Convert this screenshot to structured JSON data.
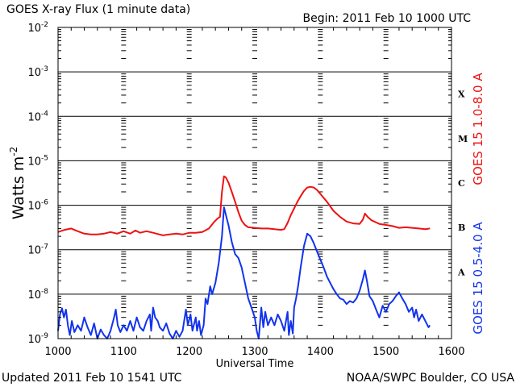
{
  "chart_data": {
    "type": "line",
    "title": "GOES X-ray Flux (1 minute data)",
    "begin_label": "Begin: 2011 Feb 10 1000 UTC",
    "xlabel": "Universal Time",
    "ylabel": "Watts m",
    "ylabel_superscript": "-2",
    "xlim": [
      1000,
      1600
    ],
    "x_ticks": [
      "1000",
      "1100",
      "1200",
      "1300",
      "1400",
      "1500",
      "1600"
    ],
    "y_scale": "log",
    "ylim": [
      1e-09,
      0.01
    ],
    "y_ticks": [
      {
        "base": "10",
        "exp": "-9",
        "value": 1e-09
      },
      {
        "base": "10",
        "exp": "-8",
        "value": 1e-08
      },
      {
        "base": "10",
        "exp": "-7",
        "value": 1e-07
      },
      {
        "base": "10",
        "exp": "-6",
        "value": 1e-06
      },
      {
        "base": "10",
        "exp": "-5",
        "value": 1e-05
      },
      {
        "base": "10",
        "exp": "-4",
        "value": 0.0001
      },
      {
        "base": "10",
        "exp": "-3",
        "value": 0.001
      },
      {
        "base": "10",
        "exp": "-2",
        "value": 0.01
      }
    ],
    "flare_classes": [
      {
        "label": "A",
        "value": 3.16e-08
      },
      {
        "label": "B",
        "value": 3.16e-07
      },
      {
        "label": "C",
        "value": 3.16e-06
      },
      {
        "label": "M",
        "value": 3.16e-05
      },
      {
        "label": "X",
        "value": 0.000316
      }
    ],
    "grid": true,
    "series": [
      {
        "name": "GOES 15 1.0-8.0 A",
        "color": "#ee1111",
        "points": [
          [
            1000,
            2.5e-07
          ],
          [
            1010,
            2.8e-07
          ],
          [
            1020,
            3e-07
          ],
          [
            1030,
            2.6e-07
          ],
          [
            1040,
            2.3e-07
          ],
          [
            1050,
            2.2e-07
          ],
          [
            1060,
            2.2e-07
          ],
          [
            1070,
            2.3e-07
          ],
          [
            1080,
            2.5e-07
          ],
          [
            1090,
            2.3e-07
          ],
          [
            1100,
            2.6e-07
          ],
          [
            1110,
            2.3e-07
          ],
          [
            1118,
            2.7e-07
          ],
          [
            1125,
            2.4e-07
          ],
          [
            1135,
            2.6e-07
          ],
          [
            1145,
            2.4e-07
          ],
          [
            1150,
            2.3e-07
          ],
          [
            1160,
            2.1e-07
          ],
          [
            1170,
            2.2e-07
          ],
          [
            1180,
            2.3e-07
          ],
          [
            1190,
            2.2e-07
          ],
          [
            1200,
            2.4e-07
          ],
          [
            1210,
            2.4e-07
          ],
          [
            1220,
            2.5e-07
          ],
          [
            1230,
            3e-07
          ],
          [
            1238,
            4.2e-07
          ],
          [
            1243,
            5e-07
          ],
          [
            1247,
            5.5e-07
          ],
          [
            1250,
            2e-06
          ],
          [
            1253,
            4.5e-06
          ],
          [
            1256,
            4.2e-06
          ],
          [
            1260,
            3.2e-06
          ],
          [
            1265,
            2e-06
          ],
          [
            1270,
            1.2e-06
          ],
          [
            1275,
            7e-07
          ],
          [
            1280,
            4.5e-07
          ],
          [
            1285,
            3.6e-07
          ],
          [
            1290,
            3.2e-07
          ],
          [
            1300,
            3.1e-07
          ],
          [
            1310,
            3e-07
          ],
          [
            1320,
            3e-07
          ],
          [
            1330,
            2.9e-07
          ],
          [
            1340,
            2.8e-07
          ],
          [
            1345,
            2.9e-07
          ],
          [
            1350,
            4e-07
          ],
          [
            1355,
            6e-07
          ],
          [
            1360,
            8.5e-07
          ],
          [
            1365,
            1.2e-06
          ],
          [
            1370,
            1.6e-06
          ],
          [
            1375,
            2.1e-06
          ],
          [
            1380,
            2.5e-06
          ],
          [
            1385,
            2.6e-06
          ],
          [
            1390,
            2.5e-06
          ],
          [
            1395,
            2.2e-06
          ],
          [
            1400,
            1.8e-06
          ],
          [
            1410,
            1.2e-06
          ],
          [
            1420,
            7.5e-07
          ],
          [
            1430,
            5.5e-07
          ],
          [
            1440,
            4.3e-07
          ],
          [
            1450,
            3.9e-07
          ],
          [
            1460,
            3.8e-07
          ],
          [
            1465,
            4.8e-07
          ],
          [
            1468,
            6.5e-07
          ],
          [
            1472,
            5.5e-07
          ],
          [
            1478,
            4.6e-07
          ],
          [
            1485,
            4.1e-07
          ],
          [
            1490,
            3.8e-07
          ],
          [
            1500,
            3.6e-07
          ],
          [
            1510,
            3.4e-07
          ],
          [
            1520,
            3.1e-07
          ],
          [
            1530,
            3.2e-07
          ],
          [
            1540,
            3.1e-07
          ],
          [
            1550,
            3e-07
          ],
          [
            1560,
            2.9e-07
          ],
          [
            1567,
            3e-07
          ]
        ]
      },
      {
        "name": "GOES 15 0.5-4.0 A",
        "color": "#1133ee",
        "points": [
          [
            1000,
            1.5e-09
          ],
          [
            1003,
            3.5e-09
          ],
          [
            1006,
            4.8e-09
          ],
          [
            1009,
            3e-09
          ],
          [
            1012,
            4.5e-09
          ],
          [
            1015,
            2e-09
          ],
          [
            1018,
            1.2e-09
          ],
          [
            1021,
            2.5e-09
          ],
          [
            1025,
            1.4e-09
          ],
          [
            1030,
            2e-09
          ],
          [
            1035,
            1.5e-09
          ],
          [
            1040,
            3e-09
          ],
          [
            1045,
            1.8e-09
          ],
          [
            1050,
            1.2e-09
          ],
          [
            1055,
            2.2e-09
          ],
          [
            1060,
            1e-09
          ],
          [
            1065,
            1.6e-09
          ],
          [
            1070,
            1.2e-09
          ],
          [
            1075,
            1e-09
          ],
          [
            1080,
            1.5e-09
          ],
          [
            1085,
            2.8e-09
          ],
          [
            1088,
            4.5e-09
          ],
          [
            1091,
            2e-09
          ],
          [
            1095,
            1.4e-09
          ],
          [
            1100,
            2e-09
          ],
          [
            1105,
            1.5e-09
          ],
          [
            1110,
            2.5e-09
          ],
          [
            1115,
            1.5e-09
          ],
          [
            1120,
            3e-09
          ],
          [
            1125,
            1.8e-09
          ],
          [
            1130,
            1.5e-09
          ],
          [
            1135,
            2.5e-09
          ],
          [
            1140,
            3.5e-09
          ],
          [
            1142,
            1.5e-09
          ],
          [
            1145,
            5e-09
          ],
          [
            1148,
            3e-09
          ],
          [
            1152,
            2.5e-09
          ],
          [
            1155,
            1.8e-09
          ],
          [
            1160,
            1.5e-09
          ],
          [
            1165,
            2.2e-09
          ],
          [
            1170,
            1.3e-09
          ],
          [
            1175,
            1e-09
          ],
          [
            1180,
            1.5e-09
          ],
          [
            1185,
            1.1e-09
          ],
          [
            1190,
            1.5e-09
          ],
          [
            1195,
            4.5e-09
          ],
          [
            1198,
            2e-09
          ],
          [
            1202,
            3.5e-09
          ],
          [
            1205,
            1.5e-09
          ],
          [
            1210,
            3e-09
          ],
          [
            1212,
            1.5e-09
          ],
          [
            1215,
            2.5e-09
          ],
          [
            1218,
            1.2e-09
          ],
          [
            1222,
            2e-09
          ],
          [
            1225,
            8e-09
          ],
          [
            1228,
            6e-09
          ],
          [
            1232,
            1.5e-08
          ],
          [
            1235,
            1e-08
          ],
          [
            1240,
            1.8e-08
          ],
          [
            1245,
            5e-08
          ],
          [
            1250,
            2e-07
          ],
          [
            1253,
            9e-07
          ],
          [
            1256,
            6e-07
          ],
          [
            1260,
            3.5e-07
          ],
          [
            1265,
            1.5e-07
          ],
          [
            1270,
            8e-08
          ],
          [
            1275,
            6.5e-08
          ],
          [
            1280,
            4e-08
          ],
          [
            1285,
            1.8e-08
          ],
          [
            1290,
            8e-09
          ],
          [
            1295,
            5e-09
          ],
          [
            1300,
            3e-09
          ],
          [
            1303,
            1.5e-09
          ],
          [
            1306,
            1e-09
          ],
          [
            1310,
            5e-09
          ],
          [
            1313,
            1.8e-09
          ],
          [
            1316,
            4e-09
          ],
          [
            1320,
            2e-09
          ],
          [
            1325,
            3e-09
          ],
          [
            1330,
            2e-09
          ],
          [
            1335,
            3.5e-09
          ],
          [
            1340,
            2.5e-09
          ],
          [
            1345,
            1.5e-09
          ],
          [
            1350,
            4e-09
          ],
          [
            1352,
            1.2e-09
          ],
          [
            1355,
            2.5e-09
          ],
          [
            1358,
            1.3e-09
          ],
          [
            1360,
            5e-09
          ],
          [
            1363,
            8e-09
          ],
          [
            1366,
            1.5e-08
          ],
          [
            1370,
            4e-08
          ],
          [
            1375,
            1.2e-07
          ],
          [
            1380,
            2.3e-07
          ],
          [
            1385,
            2e-07
          ],
          [
            1390,
            1.4e-07
          ],
          [
            1395,
            9e-08
          ],
          [
            1400,
            6e-08
          ],
          [
            1405,
            4e-08
          ],
          [
            1410,
            2.5e-08
          ],
          [
            1415,
            1.8e-08
          ],
          [
            1420,
            1.3e-08
          ],
          [
            1425,
            1e-08
          ],
          [
            1430,
            8e-09
          ],
          [
            1435,
            7.5e-09
          ],
          [
            1440,
            6e-09
          ],
          [
            1445,
            7e-09
          ],
          [
            1450,
            6.5e-09
          ],
          [
            1455,
            8e-09
          ],
          [
            1460,
            1.2e-08
          ],
          [
            1465,
            2.2e-08
          ],
          [
            1468,
            3.4e-08
          ],
          [
            1471,
            2e-08
          ],
          [
            1475,
            9e-09
          ],
          [
            1480,
            7e-09
          ],
          [
            1485,
            4.5e-09
          ],
          [
            1490,
            3e-09
          ],
          [
            1495,
            5.5e-09
          ],
          [
            1500,
            4e-09
          ],
          [
            1505,
            6e-09
          ],
          [
            1510,
            7e-09
          ],
          [
            1515,
            9e-09
          ],
          [
            1520,
            1.1e-08
          ],
          [
            1525,
            8e-09
          ],
          [
            1530,
            6e-09
          ],
          [
            1535,
            4e-09
          ],
          [
            1540,
            5e-09
          ],
          [
            1543,
            3e-09
          ],
          [
            1546,
            4.5e-09
          ],
          [
            1550,
            2.5e-09
          ],
          [
            1555,
            3.5e-09
          ],
          [
            1560,
            2.5e-09
          ],
          [
            1565,
            1.8e-09
          ],
          [
            1567,
            2e-09
          ]
        ]
      }
    ]
  },
  "footer": {
    "updated": "Updated 2011 Feb 10 1541 UTC",
    "credit": "NOAA/SWPC Boulder, CO USA"
  },
  "colors": {
    "frame": "#000000",
    "background": "#ffffff"
  }
}
